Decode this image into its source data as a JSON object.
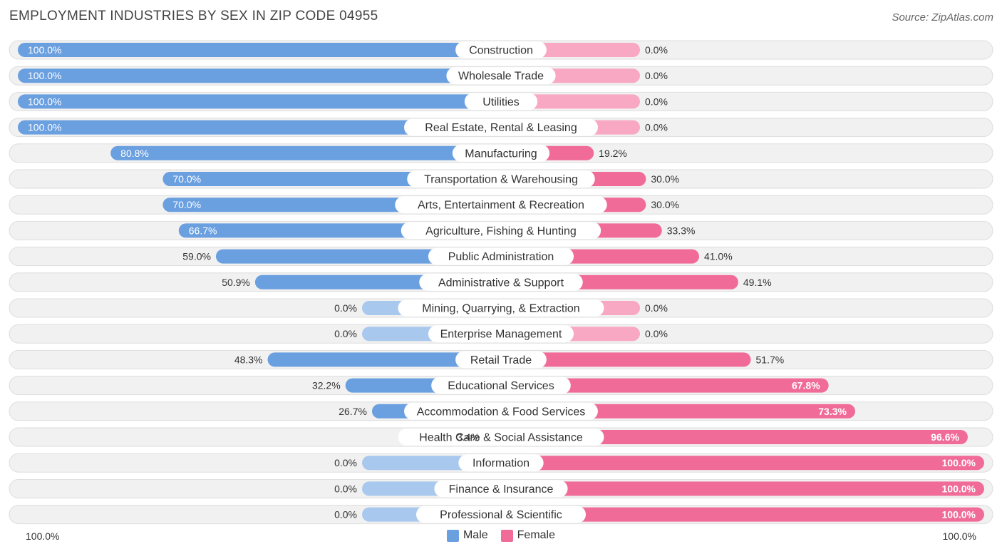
{
  "title": "EMPLOYMENT INDUSTRIES BY SEX IN ZIP CODE 04955",
  "source": "Source: ZipAtlas.com",
  "colors": {
    "male_strong": "#6a9fe0",
    "male_light": "#a9c8ee",
    "female_strong": "#f06b98",
    "female_light": "#f8a8c3",
    "row_bg": "#f1f1f1",
    "row_border": "#dddddd"
  },
  "legend": {
    "male": "Male",
    "female": "Female"
  },
  "axis": {
    "left_label": "100.0%",
    "right_label": "100.0%"
  },
  "chart_data": {
    "type": "bar",
    "orientation": "horizontal-diverging",
    "title": "EMPLOYMENT INDUSTRIES BY SEX IN ZIP CODE 04955",
    "xlim": [
      -100,
      100
    ],
    "categories": [
      "Construction",
      "Wholesale Trade",
      "Utilities",
      "Real Estate, Rental & Leasing",
      "Manufacturing",
      "Transportation & Warehousing",
      "Arts, Entertainment & Recreation",
      "Agriculture, Fishing & Hunting",
      "Public Administration",
      "Administrative & Support",
      "Mining, Quarrying, & Extraction",
      "Enterprise Management",
      "Retail Trade",
      "Educational Services",
      "Accommodation & Food Services",
      "Health Care & Social Assistance",
      "Information",
      "Finance & Insurance",
      "Professional & Scientific"
    ],
    "series": [
      {
        "name": "Male",
        "values": [
          100.0,
          100.0,
          100.0,
          100.0,
          80.8,
          70.0,
          70.0,
          66.7,
          59.0,
          50.9,
          0.0,
          0.0,
          48.3,
          32.2,
          26.7,
          3.4,
          0.0,
          0.0,
          0.0
        ],
        "labels": [
          "100.0%",
          "100.0%",
          "100.0%",
          "100.0%",
          "80.8%",
          "70.0%",
          "70.0%",
          "66.7%",
          "59.0%",
          "50.9%",
          "0.0%",
          "0.0%",
          "48.3%",
          "32.2%",
          "26.7%",
          "3.4%",
          "0.0%",
          "0.0%",
          "0.0%"
        ]
      },
      {
        "name": "Female",
        "values": [
          0.0,
          0.0,
          0.0,
          0.0,
          19.2,
          30.0,
          30.0,
          33.3,
          41.0,
          49.1,
          0.0,
          0.0,
          51.7,
          67.8,
          73.3,
          96.6,
          100.0,
          100.0,
          100.0
        ],
        "labels": [
          "0.0%",
          "0.0%",
          "0.0%",
          "0.0%",
          "19.2%",
          "30.0%",
          "30.0%",
          "33.3%",
          "41.0%",
          "49.1%",
          "0.0%",
          "0.0%",
          "51.7%",
          "67.8%",
          "73.3%",
          "96.6%",
          "100.0%",
          "100.0%",
          "100.0%"
        ]
      }
    ],
    "legend_position": "bottom-center"
  }
}
